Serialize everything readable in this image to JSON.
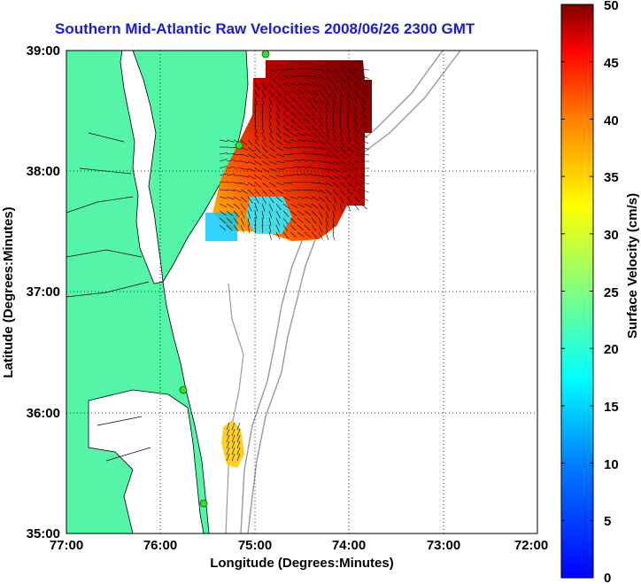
{
  "title": "Southern Mid-Atlantic Raw Velocities 2008/06/26 2300 GMT",
  "x_axis": {
    "label": "Longitude (Degrees:Minutes)",
    "ticks": [
      "77:00",
      "76:00",
      "75:00",
      "74:00",
      "73:00",
      "72:00"
    ],
    "values": [
      -77,
      -76,
      -75,
      -74,
      -73,
      -72
    ]
  },
  "y_axis": {
    "label": "Latitude (Degrees:Minutes)",
    "ticks": [
      "39:00",
      "38:00",
      "37:00",
      "36:00",
      "35:00"
    ],
    "values": [
      39,
      38,
      37,
      36,
      35
    ]
  },
  "colorbar": {
    "label": "Surface Velocity (cm/s)",
    "ticks": [
      "50",
      "45",
      "40",
      "35",
      "30",
      "25",
      "20",
      "15",
      "10",
      "5",
      "0"
    ],
    "min": 0,
    "max": 50
  },
  "colors": {
    "land": "#55f5a8",
    "title": "#1a1adc",
    "station": "#33dd33",
    "bathymetry": "#999999"
  },
  "chart_data": {
    "type": "heatmap",
    "xlim": [
      -77,
      -72
    ],
    "ylim": [
      35,
      39
    ],
    "grid": true,
    "stations": [
      {
        "lon": -74.88,
        "lat": 38.96
      },
      {
        "lon": -75.12,
        "lat": 38.2
      },
      {
        "lon": -75.7,
        "lat": 36.17
      },
      {
        "lon": -75.5,
        "lat": 35.25
      }
    ]
  }
}
